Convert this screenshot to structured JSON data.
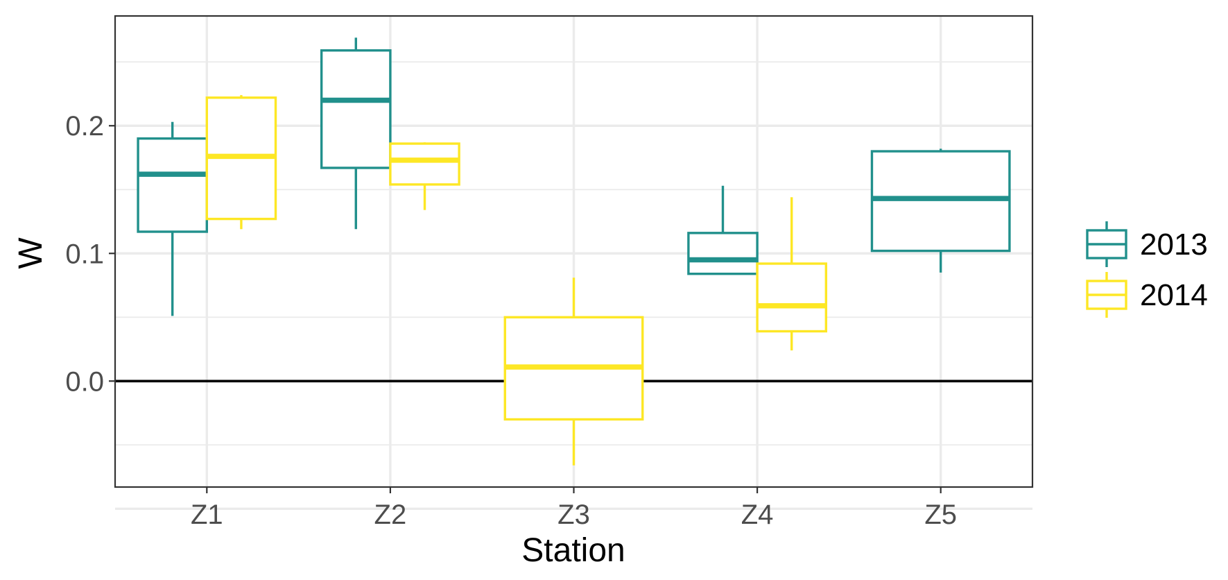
{
  "chart_data": {
    "type": "box",
    "xlabel": "Station",
    "ylabel": "W",
    "categories": [
      "Z1",
      "Z2",
      "Z3",
      "Z4",
      "Z5"
    ],
    "ylim": [
      -0.083,
      0.286
    ],
    "yticks": [
      0.0,
      0.1,
      0.2
    ],
    "ytick_labels": [
      "0.0",
      "0.1",
      "0.2"
    ],
    "grid": true,
    "reference_line_y": 0.0,
    "legend_position": "right",
    "series": [
      {
        "name": "2013",
        "color": "#21908C",
        "boxes": [
          {
            "category": "Z1",
            "lower_whisker": 0.051,
            "q1": 0.117,
            "median": 0.162,
            "q3": 0.19,
            "upper_whisker": 0.203
          },
          {
            "category": "Z2",
            "lower_whisker": 0.119,
            "q1": 0.167,
            "median": 0.22,
            "q3": 0.259,
            "upper_whisker": 0.269
          },
          {
            "category": "Z4",
            "lower_whisker": 0.084,
            "q1": 0.084,
            "median": 0.095,
            "q3": 0.116,
            "upper_whisker": 0.153
          },
          {
            "category": "Z5",
            "lower_whisker": 0.085,
            "q1": 0.102,
            "median": 0.143,
            "q3": 0.18,
            "upper_whisker": 0.182
          }
        ]
      },
      {
        "name": "2014",
        "color": "#FDE725",
        "boxes": [
          {
            "category": "Z1",
            "lower_whisker": 0.119,
            "q1": 0.127,
            "median": 0.176,
            "q3": 0.222,
            "upper_whisker": 0.224
          },
          {
            "category": "Z2",
            "lower_whisker": 0.134,
            "q1": 0.154,
            "median": 0.173,
            "q3": 0.186,
            "upper_whisker": 0.187
          },
          {
            "category": "Z3",
            "lower_whisker": -0.066,
            "q1": -0.03,
            "median": 0.011,
            "q3": 0.05,
            "upper_whisker": 0.081
          },
          {
            "category": "Z4",
            "lower_whisker": 0.024,
            "q1": 0.039,
            "median": 0.059,
            "q3": 0.092,
            "upper_whisker": 0.144
          }
        ]
      }
    ]
  }
}
